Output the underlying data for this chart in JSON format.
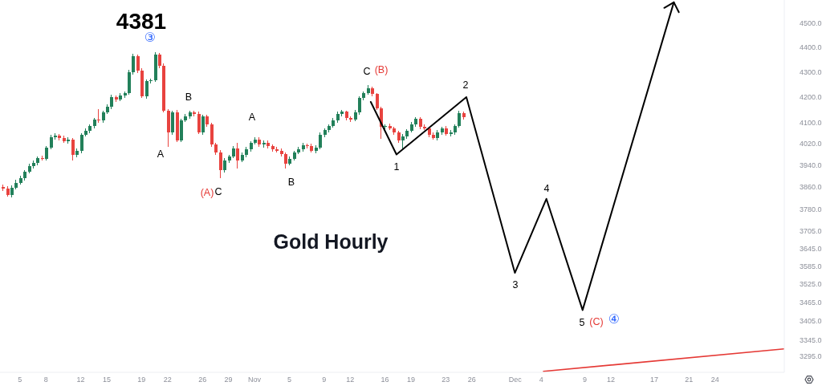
{
  "chart_data": {
    "type": "candlestick",
    "title": "Gold Hourly",
    "x": [
      "--10-03T00:00",
      "--10-03T12:00",
      "--10-04T00:00",
      "--10-04T12:00",
      "--10-05T00:00",
      "--10-05T12:00",
      "--10-06T00:00",
      "--10-06T12:00",
      "--10-07T00:00",
      "--10-07T12:00",
      "--10-08T00:00",
      "--10-08T12:00",
      "--10-09T00:00",
      "--10-09T12:00",
      "--10-10T00:00",
      "--10-10T12:00",
      "--10-11T00:00",
      "--10-11T12:00",
      "--10-12T00:00",
      "--10-12T12:00",
      "--10-13T00:00",
      "--10-13T12:00",
      "--10-14T00:00",
      "--10-14T12:00",
      "--10-15T00:00",
      "--10-15T12:00",
      "--10-16T00:00",
      "--10-16T12:00",
      "--10-17T00:00",
      "--10-17T12:00",
      "--10-18T00:00",
      "--10-18T12:00",
      "--10-19T00:00",
      "--10-19T12:00",
      "--10-20T00:00",
      "--10-20T12:00",
      "--10-21T00:00",
      "--10-21T12:00",
      "--10-22T00:00",
      "--10-22T12:00",
      "--10-23T00:00",
      "--10-23T12:00",
      "--10-24T00:00",
      "--10-24T12:00",
      "--10-25T00:00",
      "--10-25T12:00",
      "--10-26T00:00",
      "--10-26T12:00",
      "--10-27T00:00",
      "--10-27T12:00",
      "--10-28T00:00",
      "--10-28T12:00",
      "--10-29T00:00",
      "--10-29T12:00",
      "--10-30T00:00",
      "--10-30T12:00",
      "--10-31T00:00",
      "--10-31T12:00",
      "--11-01T00:00",
      "--11-01T12:00",
      "--11-02T00:00",
      "--11-02T12:00",
      "--11-03T00:00",
      "--11-03T12:00",
      "--11-04T00:00",
      "--11-04T12:00",
      "--11-05T00:00",
      "--11-05T12:00",
      "--11-06T00:00",
      "--11-06T12:00",
      "--11-07T00:00",
      "--11-07T12:00",
      "--11-08T00:00",
      "--11-08T12:00",
      "--11-09T00:00",
      "--11-09T12:00",
      "--11-10T00:00",
      "--11-10T12:00",
      "--11-11T00:00",
      "--11-11T12:00",
      "--11-12T00:00",
      "--11-12T12:00",
      "--11-13T00:00",
      "--11-13T12:00",
      "--11-14T00:00",
      "--11-14T12:00",
      "--11-15T00:00",
      "--11-15T12:00",
      "--11-16T00:00",
      "--11-16T12:00",
      "--11-17T00:00",
      "--11-17T12:00",
      "--11-18T00:00",
      "--11-18T12:00",
      "--11-19T00:00",
      "--11-19T12:00",
      "--11-20T00:00",
      "--11-20T12:00",
      "--11-21T00:00",
      "--11-21T12:00",
      "--11-22T00:00",
      "--11-22T12:00",
      "--11-23T00:00",
      "--11-23T12:00",
      "--11-24T00:00",
      "--11-24T12:00",
      "--11-25T00:00"
    ],
    "ohlc": [
      [
        3862,
        3868,
        3845,
        3855
      ],
      [
        3855,
        3865,
        3826,
        3832
      ],
      [
        3832,
        3866,
        3824,
        3858
      ],
      [
        3858,
        3886,
        3853,
        3876
      ],
      [
        3876,
        3901,
        3868,
        3893
      ],
      [
        3893,
        3923,
        3883,
        3917
      ],
      [
        3917,
        3947,
        3911,
        3937
      ],
      [
        3937,
        3957,
        3929,
        3949
      ],
      [
        3949,
        3973,
        3939,
        3967
      ],
      [
        3967,
        3977,
        3958,
        3964
      ],
      [
        3964,
        4012,
        3959,
        4006
      ],
      [
        4006,
        4055,
        4000,
        4045
      ],
      [
        4045,
        4059,
        4037,
        4051
      ],
      [
        4051,
        4057,
        4032,
        4042
      ],
      [
        4042,
        4052,
        4024,
        4030
      ],
      [
        4030,
        4044,
        4022,
        4036
      ],
      [
        4036,
        4041,
        3958,
        3979
      ],
      [
        3979,
        4002,
        3971,
        3994
      ],
      [
        3994,
        4060,
        3984,
        4054
      ],
      [
        4054,
        4079,
        4048,
        4069
      ],
      [
        4069,
        4095,
        4061,
        4087
      ],
      [
        4087,
        4118,
        4077,
        4112
      ],
      [
        4112,
        4154,
        4101,
        4109
      ],
      [
        4109,
        4146,
        4099,
        4140
      ],
      [
        4140,
        4172,
        4134,
        4162
      ],
      [
        4162,
        4208,
        4154,
        4200
      ],
      [
        4200,
        4206,
        4180,
        4190
      ],
      [
        4190,
        4216,
        4184,
        4206
      ],
      [
        4206,
        4223,
        4198,
        4215
      ],
      [
        4215,
        4308,
        4210,
        4298
      ],
      [
        4298,
        4375,
        4290,
        4364
      ],
      [
        4364,
        4370,
        4295,
        4305
      ],
      [
        4305,
        4315,
        4197,
        4203
      ],
      [
        4203,
        4271,
        4195,
        4263
      ],
      [
        4263,
        4272,
        4253,
        4266
      ],
      [
        4266,
        4381,
        4261,
        4370
      ],
      [
        4370,
        4376,
        4315,
        4325
      ],
      [
        4325,
        4335,
        4140,
        4146
      ],
      [
        4146,
        4154,
        4009,
        4063
      ],
      [
        4063,
        4146,
        4053,
        4140
      ],
      [
        4140,
        4150,
        4027,
        4033
      ],
      [
        4033,
        4115,
        4028,
        4109
      ],
      [
        4109,
        4134,
        4103,
        4124
      ],
      [
        4124,
        4148,
        4116,
        4140
      ],
      [
        4140,
        4146,
        4124,
        4134
      ],
      [
        4134,
        4144,
        4057,
        4063
      ],
      [
        4063,
        4132,
        4055,
        4124
      ],
      [
        4124,
        4130,
        4084,
        4094
      ],
      [
        4094,
        4099,
        4010,
        4018
      ],
      [
        4018,
        4024,
        3978,
        3988
      ],
      [
        3988,
        3998,
        3893,
        3922
      ],
      [
        3922,
        3966,
        3914,
        3958
      ],
      [
        3958,
        3979,
        3948,
        3973
      ],
      [
        3973,
        4013,
        3967,
        4003
      ],
      [
        4003,
        4024,
        3928,
        3958
      ],
      [
        3958,
        3989,
        3952,
        3979
      ],
      [
        3979,
        4008,
        3971,
        4000
      ],
      [
        4000,
        4030,
        3990,
        4024
      ],
      [
        4024,
        4046,
        4018,
        4036
      ],
      [
        4036,
        4044,
        4010,
        4018
      ],
      [
        4018,
        4034,
        4006,
        4024
      ],
      [
        4024,
        4032,
        4004,
        4012
      ],
      [
        4012,
        4018,
        3990,
        4000
      ],
      [
        4000,
        4010,
        3988,
        3994
      ],
      [
        3994,
        4002,
        3974,
        3982
      ],
      [
        3982,
        3988,
        3928,
        3946
      ],
      [
        3946,
        3974,
        3940,
        3964
      ],
      [
        3964,
        3994,
        3959,
        3988
      ],
      [
        3988,
        4010,
        3982,
        4000
      ],
      [
        4000,
        4023,
        3992,
        4015
      ],
      [
        4015,
        4021,
        4002,
        4012
      ],
      [
        4012,
        4022,
        3988,
        3994
      ],
      [
        3994,
        4014,
        3986,
        4006
      ],
      [
        4006,
        4064,
        4001,
        4054
      ],
      [
        4054,
        4080,
        4046,
        4072
      ],
      [
        4072,
        4093,
        4062,
        4087
      ],
      [
        4087,
        4119,
        4081,
        4109
      ],
      [
        4109,
        4142,
        4101,
        4134
      ],
      [
        4134,
        4149,
        4124,
        4143
      ],
      [
        4143,
        4148,
        4110,
        4118
      ],
      [
        4118,
        4124,
        4102,
        4112
      ],
      [
        4112,
        4150,
        4106,
        4140
      ],
      [
        4140,
        4204,
        4132,
        4196
      ],
      [
        4196,
        4221,
        4186,
        4215
      ],
      [
        4215,
        4247,
        4209,
        4234
      ],
      [
        4234,
        4242,
        4204,
        4212
      ],
      [
        4212,
        4217,
        4149,
        4155
      ],
      [
        4155,
        4163,
        4039,
        4084
      ],
      [
        4084,
        4093,
        4074,
        4087
      ],
      [
        4087,
        4097,
        4072,
        4078
      ],
      [
        4078,
        4086,
        4055,
        4063
      ],
      [
        4063,
        4069,
        4023,
        4033
      ],
      [
        4033,
        4056,
        4004,
        4048
      ],
      [
        4048,
        4075,
        4038,
        4069
      ],
      [
        4069,
        4104,
        4063,
        4094
      ],
      [
        4094,
        4123,
        4086,
        4115
      ],
      [
        4115,
        4121,
        4074,
        4084
      ],
      [
        4084,
        4094,
        4072,
        4078
      ],
      [
        4078,
        4083,
        4044,
        4054
      ],
      [
        4054,
        4064,
        4036,
        4042
      ],
      [
        4042,
        4071,
        4034,
        4063
      ],
      [
        4063,
        4084,
        4053,
        4078
      ],
      [
        4078,
        4088,
        4051,
        4057
      ],
      [
        4057,
        4071,
        4049,
        4063
      ],
      [
        4063,
        4093,
        4053,
        4087
      ],
      [
        4087,
        4148,
        4082,
        4137
      ],
      [
        4137,
        4143,
        4111,
        4121
      ]
    ],
    "colors": [
      "#e8433f",
      "#e8433f",
      "#22805a",
      "#22805a",
      "#22805a",
      "#22805a",
      "#22805a",
      "#22805a",
      "#22805a",
      "#e8433f",
      "#22805a",
      "#22805a",
      "#22805a",
      "#e8433f",
      "#e8433f",
      "#22805a",
      "#e8433f",
      "#22805a",
      "#22805a",
      "#22805a",
      "#22805a",
      "#22805a",
      "#e8433f",
      "#22805a",
      "#22805a",
      "#22805a",
      "#e8433f",
      "#22805a",
      "#22805a",
      "#22805a",
      "#22805a",
      "#e8433f",
      "#e8433f",
      "#22805a",
      "#22805a",
      "#22805a",
      "#e8433f",
      "#e8433f",
      "#e8433f",
      "#22805a",
      "#e8433f",
      "#22805a",
      "#22805a",
      "#22805a",
      "#e8433f",
      "#e8433f",
      "#22805a",
      "#e8433f",
      "#e8433f",
      "#e8433f",
      "#e8433f",
      "#22805a",
      "#22805a",
      "#22805a",
      "#e8433f",
      "#22805a",
      "#22805a",
      "#22805a",
      "#22805a",
      "#e8433f",
      "#22805a",
      "#e8433f",
      "#e8433f",
      "#e8433f",
      "#e8433f",
      "#e8433f",
      "#22805a",
      "#22805a",
      "#22805a",
      "#22805a",
      "#e8433f",
      "#e8433f",
      "#22805a",
      "#22805a",
      "#22805a",
      "#22805a",
      "#22805a",
      "#22805a",
      "#22805a",
      "#e8433f",
      "#e8433f",
      "#22805a",
      "#22805a",
      "#22805a",
      "#22805a",
      "#e8433f",
      "#e8433f",
      "#e8433f",
      "#22805a",
      "#e8433f",
      "#e8433f",
      "#e8433f",
      "#22805a",
      "#22805a",
      "#22805a",
      "#22805a",
      "#e8433f",
      "#e8433f",
      "#e8433f",
      "#e8433f",
      "#22805a",
      "#22805a",
      "#e8433f",
      "#22805a",
      "#22805a",
      "#22805a",
      "#e8433f"
    ],
    "series": [
      {
        "type": "line",
        "color": "#000000",
        "x": [
          "--11-14T09:00",
          "--11-17T08:00",
          "--11-25T09:00",
          "--11-30T23:00",
          "--12-04T14:00",
          "--12-08T18:00",
          "--12-19T06:00"
        ],
        "values": [
          4181,
          3980,
          4200,
          3562,
          3818,
          3440,
          4590
        ]
      },
      {
        "type": "line",
        "color": "#e53935",
        "x": [
          "--12-04T06:00",
          "--12-31T23:00"
        ],
        "values": [
          3248,
          3317
        ]
      }
    ],
    "xlim": [
      "--10-02T17:00",
      "--12-31T23:00"
    ],
    "xticks": [
      {
        "value": "--10-05",
        "label": "5"
      },
      {
        "value": "--10-08",
        "label": "8"
      },
      {
        "value": "--10-12",
        "label": "12"
      },
      {
        "value": "--10-15",
        "label": "15"
      },
      {
        "value": "--10-19",
        "label": "19"
      },
      {
        "value": "--10-22",
        "label": "22"
      },
      {
        "value": "--10-26",
        "label": "26"
      },
      {
        "value": "--10-29",
        "label": "29"
      },
      {
        "value": "--11-01",
        "label": "Nov"
      },
      {
        "value": "--11-05",
        "label": "5"
      },
      {
        "value": "--11-09",
        "label": "9"
      },
      {
        "value": "--11-12",
        "label": "12"
      },
      {
        "value": "--11-16",
        "label": "16"
      },
      {
        "value": "--11-19",
        "label": "19"
      },
      {
        "value": "--11-23",
        "label": "23"
      },
      {
        "value": "--11-26",
        "label": "26"
      },
      {
        "value": "--12-01",
        "label": "Dec"
      },
      {
        "value": "--12-04",
        "label": "4"
      },
      {
        "value": "--12-09",
        "label": "9"
      },
      {
        "value": "--12-12",
        "label": "12"
      },
      {
        "value": "--12-17",
        "label": "17"
      },
      {
        "value": "--12-21",
        "label": "21"
      },
      {
        "value": "--12-24",
        "label": "24"
      }
    ],
    "ylim": [
      3245,
      4600
    ],
    "yticks": [
      {
        "value": 4500,
        "label": "4500.0"
      },
      {
        "value": 4400,
        "label": "4400.0"
      },
      {
        "value": 4300,
        "label": "4300.0"
      },
      {
        "value": 4200,
        "label": "4200.0"
      },
      {
        "value": 4100,
        "label": "4100.0"
      },
      {
        "value": 4020,
        "label": "4020.0"
      },
      {
        "value": 3940,
        "label": "3940.0"
      },
      {
        "value": 3860,
        "label": "3860.0"
      },
      {
        "value": 3780,
        "label": "3780.0"
      },
      {
        "value": 3705,
        "label": "3705.0"
      },
      {
        "value": 3645,
        "label": "3645.0"
      },
      {
        "value": 3585,
        "label": "3585.0"
      },
      {
        "value": 3525,
        "label": "3525.0"
      },
      {
        "value": 3465,
        "label": "3465.0"
      },
      {
        "value": 3405,
        "label": "3405.0"
      },
      {
        "value": 3345,
        "label": "3345.0"
      },
      {
        "value": 3295,
        "label": "3295.0"
      }
    ],
    "log": true,
    "annotations": [
      "4381",
      "③",
      "A",
      "B",
      "(A)",
      "C",
      "A",
      "B",
      "C",
      "(B)",
      "1",
      "2",
      "3",
      "4",
      "5",
      "(C)",
      "④"
    ]
  }
}
